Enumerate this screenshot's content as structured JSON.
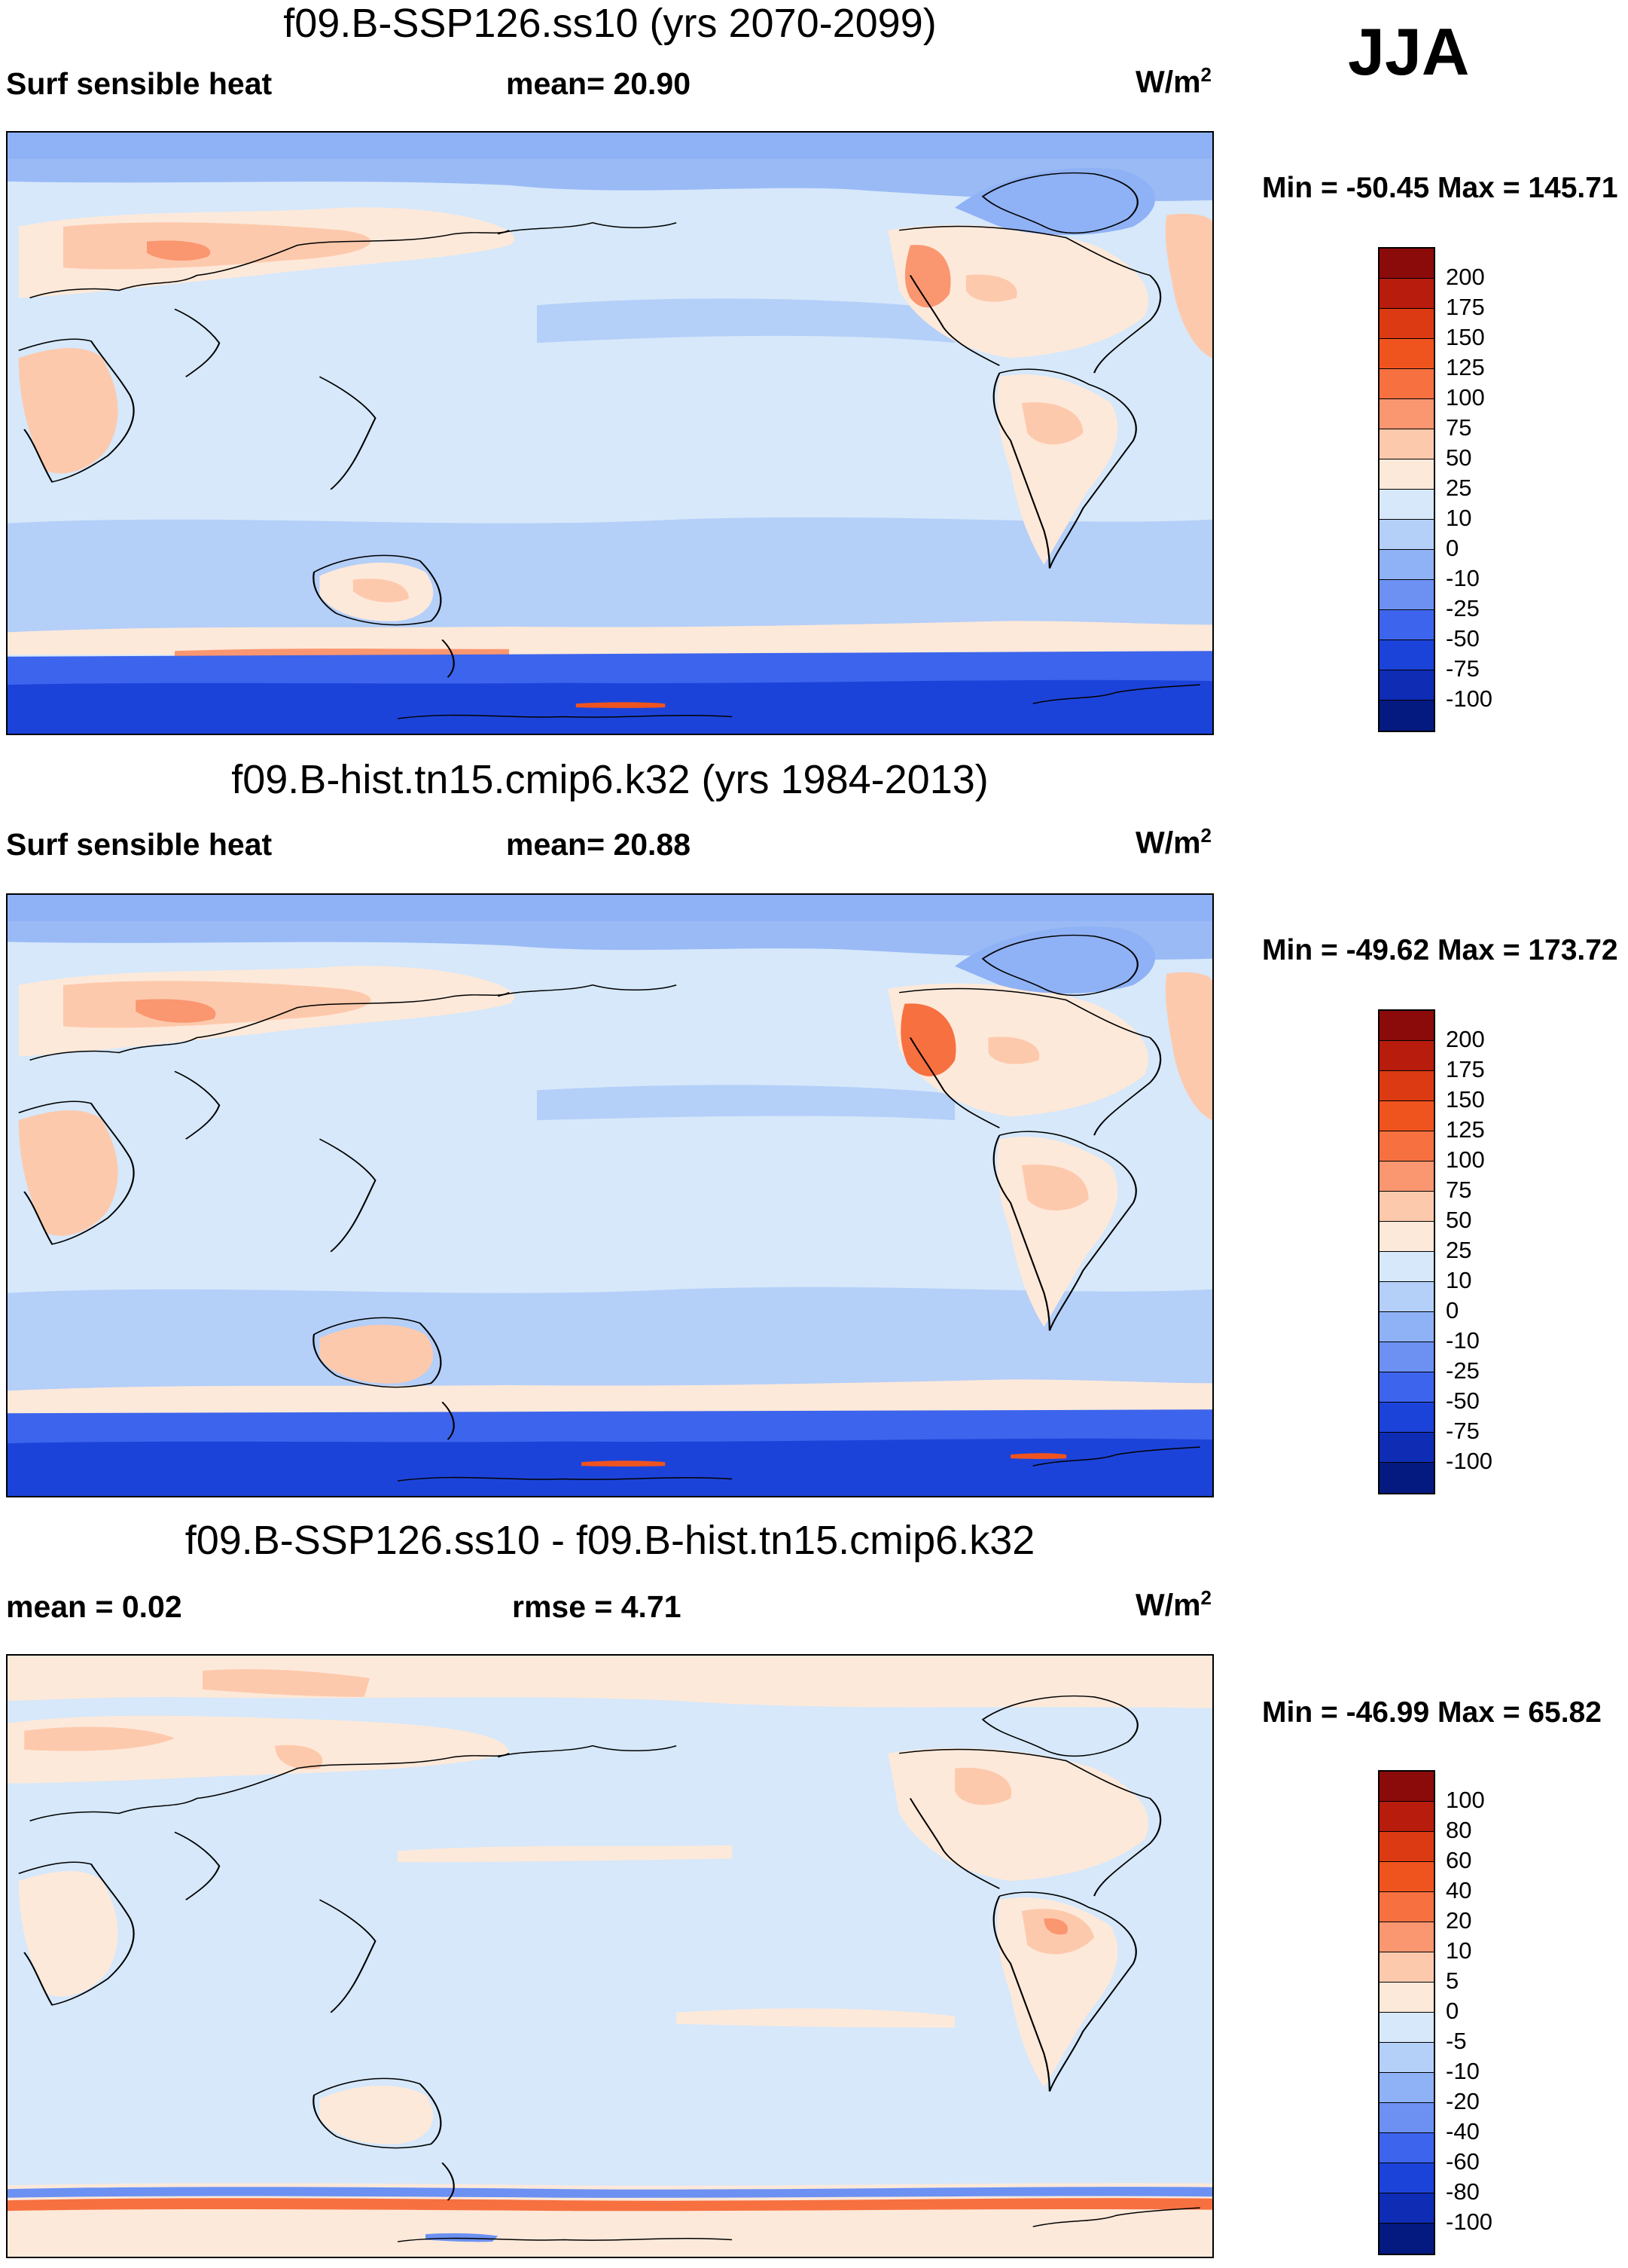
{
  "season": "JJA",
  "units_base": "W/m",
  "units_exp": "2",
  "panels": [
    {
      "title": "f09.B-SSP126.ss10 (yrs 2070-2099)",
      "left_label": "Surf sensible heat",
      "center_label": "mean=  20.90",
      "minmax": "Min = -50.45 Max = 145.71",
      "colorbar_labels": [
        "200",
        "175",
        "150",
        "125",
        "100",
        "75",
        "50",
        "25",
        "10",
        "0",
        "-10",
        "-25",
        "-50",
        "-75",
        "-100"
      ],
      "colorbar_colors": [
        "#8b0a0a",
        "#b71c0c",
        "#dc3a12",
        "#f0541e",
        "#f77040",
        "#fa9670",
        "#fdc9ac",
        "#fde9da",
        "#d6e8fa",
        "#b4cff8",
        "#8fb1f5",
        "#6c91f2",
        "#3d64ec",
        "#1c43d9",
        "#0e2cb4",
        "#041a80"
      ]
    },
    {
      "title": "f09.B-hist.tn15.cmip6.k32 (yrs 1984-2013)",
      "left_label": "Surf sensible heat",
      "center_label": "mean=  20.88",
      "minmax": "Min = -49.62 Max = 173.72",
      "colorbar_labels": [
        "200",
        "175",
        "150",
        "125",
        "100",
        "75",
        "50",
        "25",
        "10",
        "0",
        "-10",
        "-25",
        "-50",
        "-75",
        "-100"
      ],
      "colorbar_colors": [
        "#8b0a0a",
        "#b71c0c",
        "#dc3a12",
        "#f0541e",
        "#f77040",
        "#fa9670",
        "#fdc9ac",
        "#fde9da",
        "#d6e8fa",
        "#b4cff8",
        "#8fb1f5",
        "#6c91f2",
        "#3d64ec",
        "#1c43d9",
        "#0e2cb4",
        "#041a80"
      ]
    },
    {
      "title": "f09.B-SSP126.ss10 - f09.B-hist.tn15.cmip6.k32",
      "left_label": "mean =   0.02",
      "center_label": "rmse =   4.71",
      "minmax": "Min = -46.99 Max =  65.82",
      "colorbar_labels": [
        "100",
        "80",
        "60",
        "40",
        "20",
        "10",
        "5",
        "0",
        "-5",
        "-10",
        "-20",
        "-40",
        "-60",
        "-80",
        "-100"
      ],
      "colorbar_colors": [
        "#8b0a0a",
        "#b71c0c",
        "#dc3a12",
        "#f0541e",
        "#f77040",
        "#fa9670",
        "#fdc9ac",
        "#fde9da",
        "#d6e8fa",
        "#b4cff8",
        "#8fb1f5",
        "#6c91f2",
        "#3d64ec",
        "#1c43d9",
        "#0e2cb4",
        "#041a80"
      ]
    }
  ]
}
